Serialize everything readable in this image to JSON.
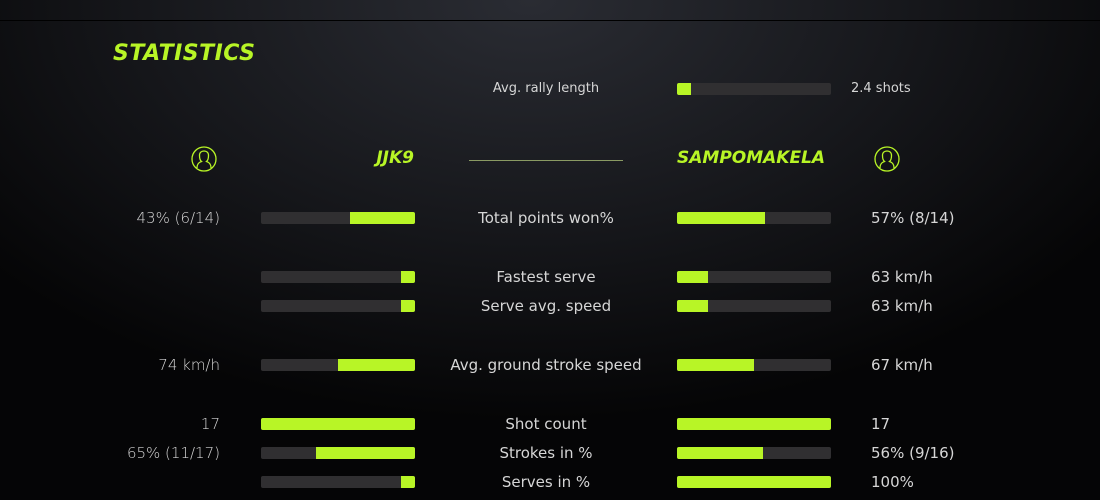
{
  "title": "STATISTICS",
  "accent_color": "#b8f526",
  "rally": {
    "label": "Avg. rally length",
    "value": "2.4 shots",
    "fill": 0.09
  },
  "players": {
    "left": {
      "name": "JJK9",
      "icon": "user-circle-icon"
    },
    "right": {
      "name": "SAMPOMAKELA",
      "icon": "user-circle-icon"
    }
  },
  "stats": [
    {
      "label": "Total points won%",
      "left": "43% (6/14)",
      "right": "57% (8/14)",
      "left_fill": 0.42,
      "right_fill": 0.57
    },
    {
      "label": "Fastest serve",
      "left": "",
      "right": "63 km/h",
      "left_fill": 0.09,
      "right_fill": 0.2
    },
    {
      "label": "Serve avg. speed",
      "left": "",
      "right": "63 km/h",
      "left_fill": 0.09,
      "right_fill": 0.2
    },
    {
      "label": "Avg. ground stroke speed",
      "left": "74 km/h",
      "right": "67 km/h",
      "left_fill": 0.5,
      "right_fill": 0.5
    },
    {
      "label": "Shot count",
      "left": "17",
      "right": "17",
      "left_fill": 1.0,
      "right_fill": 1.0
    },
    {
      "label": "Strokes in %",
      "left": "65% (11/17)",
      "right": "56% (9/16)",
      "left_fill": 0.64,
      "right_fill": 0.56
    },
    {
      "label": "Serves in %",
      "left": "",
      "right": "100%",
      "left_fill": 0.09,
      "right_fill": 1.0
    }
  ]
}
